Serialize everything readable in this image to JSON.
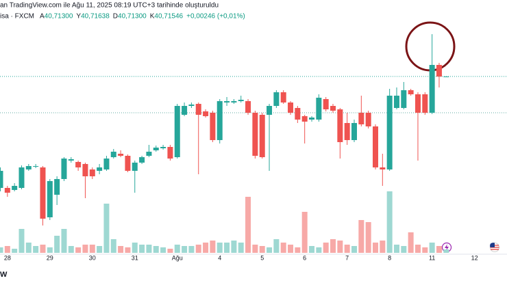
{
  "header": {
    "created": "an TradingView.com ile Ağu 11, 2025 08:19 UTC+3 tarihinde oluşturuldu",
    "symbol": "isa · FXCM",
    "fields": [
      {
        "key": "A",
        "value": "40,71300"
      },
      {
        "key": "Y",
        "value": "40,71638"
      },
      {
        "key": "D",
        "value": "40,71300"
      },
      {
        "key": "K",
        "value": "40,71546"
      }
    ],
    "change": "+0,00246 (+0,01%)",
    "value_color": "#089981"
  },
  "chart_data": {
    "type": "candlestick",
    "categories": [
      null,
      "28",
      null,
      null,
      null,
      null,
      null,
      "29",
      null,
      null,
      null,
      null,
      null,
      "30",
      null,
      null,
      null,
      null,
      null,
      "31",
      null,
      null,
      null,
      null,
      null,
      "Ağu",
      null,
      null,
      null,
      null,
      null,
      "4",
      null,
      null,
      null,
      null,
      null,
      "5",
      null,
      null,
      null,
      null,
      null,
      "6",
      null,
      null,
      null,
      null,
      null,
      "7",
      null,
      null,
      null,
      null,
      null,
      "8",
      null,
      null,
      null,
      null,
      null,
      "11",
      null,
      null,
      null,
      null,
      null,
      "12"
    ],
    "open": [
      39.9,
      39.9,
      39.885,
      39.9,
      40.035,
      40.055,
      40.05,
      39.685,
      39.85,
      39.965,
      40.1,
      40.09,
      40.075,
      40.035,
      40.025,
      40.035,
      40.125,
      40.15,
      40.135,
      40.025,
      40.085,
      40.135,
      40.175,
      40.19,
      40.2,
      40.125,
      40.435,
      40.5,
      40.515,
      40.46,
      40.45,
      40.25,
      40.525,
      40.525,
      40.535,
      40.535,
      40.45,
      40.435,
      40.435,
      40.5,
      40.6,
      40.525,
      40.485,
      40.425,
      40.4,
      40.4,
      40.55,
      40.5,
      40.475,
      40.375,
      40.25,
      40.45,
      40.45,
      40.35,
      40.05,
      40.035,
      40.485,
      40.485,
      40.615,
      40.585,
      40.585,
      40.45,
      40.8,
      40.713,
      null,
      null,
      null,
      null
    ],
    "high": [
      40.05,
      39.915,
      39.935,
      40.065,
      40.075,
      40.075,
      40.06,
      39.965,
      39.985,
      40.125,
      40.125,
      40.1,
      40.085,
      40.05,
      40.075,
      40.135,
      40.185,
      40.175,
      40.145,
      40.1,
      40.135,
      40.215,
      40.21,
      40.215,
      40.215,
      40.515,
      40.525,
      40.525,
      40.525,
      40.475,
      40.465,
      40.55,
      40.565,
      40.55,
      40.575,
      40.55,
      40.465,
      40.45,
      40.515,
      40.615,
      40.615,
      40.535,
      40.5,
      40.435,
      40.425,
      40.585,
      40.565,
      40.515,
      40.485,
      40.45,
      40.4,
      40.575,
      40.465,
      40.365,
      40.15,
      40.625,
      40.635,
      40.675,
      40.625,
      40.6,
      40.6,
      41.025,
      40.815,
      40.71638,
      null,
      null,
      null,
      null
    ],
    "low": [
      39.875,
      39.835,
      39.875,
      39.89,
      40.025,
      40.045,
      39.625,
      39.665,
      39.775,
      39.95,
      40.085,
      40.025,
      39.825,
      39.965,
      40.0,
      40.025,
      40.115,
      40.125,
      40.015,
      39.865,
      40.075,
      40.125,
      40.165,
      40.18,
      40.1,
      40.115,
      40.425,
      40.485,
      40.0,
      40.415,
      40.235,
      40.225,
      40.5,
      40.515,
      40.525,
      40.435,
      40.115,
      40.115,
      40.025,
      40.485,
      40.515,
      40.435,
      40.375,
      40.225,
      40.385,
      40.385,
      40.46,
      40.45,
      40.115,
      40.215,
      40.235,
      40.35,
      40.335,
      40.035,
      39.915,
      40.025,
      40.475,
      40.475,
      40.575,
      40.1,
      40.435,
      40.44,
      40.635,
      40.713,
      null,
      null,
      null,
      null
    ],
    "close": [
      40.025,
      39.865,
      39.915,
      40.05,
      40.06,
      40.06,
      39.675,
      39.95,
      39.965,
      40.115,
      40.11,
      40.05,
      39.985,
      39.985,
      40.05,
      40.115,
      40.165,
      40.135,
      40.025,
      40.085,
      40.125,
      40.165,
      40.195,
      40.2,
      40.115,
      40.5,
      40.5,
      40.51,
      40.435,
      40.425,
      40.25,
      40.535,
      40.535,
      40.535,
      40.545,
      40.45,
      40.135,
      40.125,
      40.5,
      40.6,
      40.525,
      40.45,
      40.4,
      40.385,
      40.415,
      40.56,
      40.475,
      40.465,
      40.235,
      40.25,
      40.375,
      40.365,
      40.35,
      40.05,
      40.035,
      40.575,
      40.575,
      40.615,
      40.585,
      40.45,
      40.45,
      40.8,
      40.715,
      40.71546,
      null,
      null,
      null,
      null
    ],
    "volume": [
      8,
      10,
      6,
      35,
      15,
      10,
      12,
      8,
      25,
      35,
      10,
      8,
      12,
      12,
      10,
      72,
      20,
      10,
      8,
      15,
      12,
      12,
      10,
      8,
      6,
      12,
      10,
      10,
      12,
      15,
      18,
      15,
      15,
      18,
      15,
      82,
      12,
      10,
      8,
      20,
      15,
      12,
      8,
      60,
      10,
      8,
      15,
      20,
      18,
      12,
      10,
      48,
      45,
      15,
      18,
      90,
      12,
      10,
      30,
      12,
      8,
      15,
      10,
      5,
      null,
      null,
      null,
      null
    ],
    "ylim": [
      39.575,
      41.175
    ],
    "volume_lim": [
      0,
      100
    ],
    "up_color": "#26a69a",
    "down_color": "#ef5350",
    "volume_up_color": "#9ed8d2",
    "volume_down_color": "#f7a9a7",
    "price_lines": [
      {
        "value": 40.71546,
        "color": "#26a69a"
      },
      {
        "value": 40.45,
        "color": "#5fa8a0"
      }
    ],
    "footer": "W"
  }
}
